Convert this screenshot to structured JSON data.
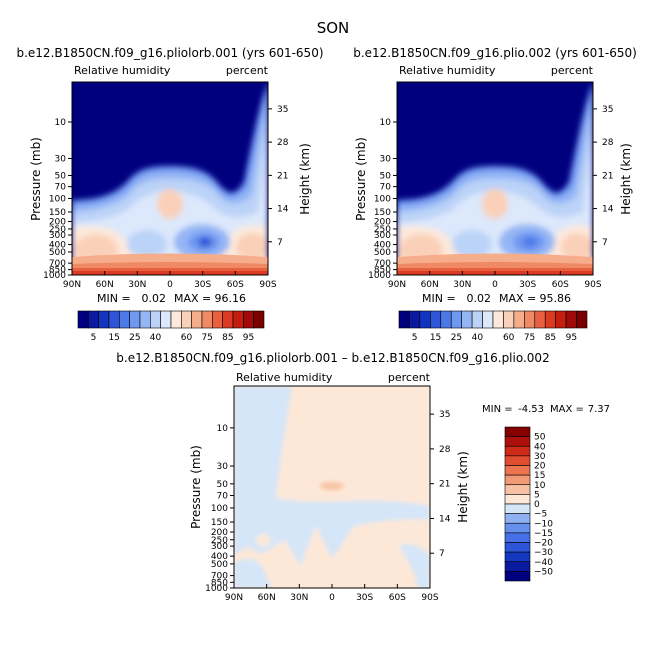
{
  "page_title": "SON",
  "colors": {
    "lb_top": [
      "#00007f",
      "#0a1aa0",
      "#1235c0",
      "#2f55d8",
      "#4c79e8",
      "#6f98f0",
      "#95b6f5",
      "#bcd3f8",
      "#dce8fb",
      "#fde9dc",
      "#fad0b8",
      "#f6ad8b",
      "#f08a64",
      "#e96040",
      "#dc3a22",
      "#c41e0e",
      "#a10a0a",
      "#7a0000"
    ],
    "lb_diff": [
      "#00007f",
      "#0a1aa0",
      "#1238c0",
      "#2c55d8",
      "#4570e6",
      "#6590ee",
      "#8fb0f3",
      "#d5e6f8",
      "#fde8d8",
      "#f7c2a3",
      "#f29a76",
      "#ec744e",
      "#e14d2f",
      "#cd2b17",
      "#ad100a",
      "#870000"
    ],
    "outside": "#00007f"
  },
  "chart_data": [
    {
      "type": "heatmap",
      "title": "b.e12.B1850CN.f09_g16.pliolorb.001 (yrs 601-650)",
      "left_label": "Relative humidity",
      "right_label": "percent",
      "ylabel": "Pressure (mb)",
      "ylabel_right": "Height (km)",
      "xticks": [
        "90N",
        "60N",
        "30N",
        "0",
        "30S",
        "60S",
        "90S"
      ],
      "pressure_ticks": [
        "10",
        "30",
        "50",
        "70",
        "100",
        "150",
        "200",
        "250",
        "300",
        "400",
        "500",
        "700",
        "850",
        "1000"
      ],
      "height_ticks": [
        "35",
        "28",
        "21",
        "14",
        "7"
      ],
      "min_label": "MIN =",
      "min_value": "0.02",
      "max_label": "MAX =",
      "max_value": "96.16",
      "colorbar_labels": [
        "5",
        "15",
        "25",
        "40",
        "60",
        "75",
        "85",
        "95"
      ]
    },
    {
      "type": "heatmap",
      "title": "b.e12.B1850CN.f09_g16.plio.002 (yrs 601-650)",
      "left_label": "Relative humidity",
      "right_label": "percent",
      "ylabel": "Pressure (mb)",
      "ylabel_right": "Height (km)",
      "xticks": [
        "90N",
        "60N",
        "30N",
        "0",
        "30S",
        "60S",
        "90S"
      ],
      "pressure_ticks": [
        "10",
        "30",
        "50",
        "70",
        "100",
        "150",
        "200",
        "250",
        "300",
        "400",
        "500",
        "700",
        "850",
        "1000"
      ],
      "height_ticks": [
        "35",
        "28",
        "21",
        "14",
        "7"
      ],
      "min_label": "MIN =",
      "min_value": "0.02",
      "max_label": "MAX =",
      "max_value": "95.86",
      "colorbar_labels": [
        "5",
        "15",
        "25",
        "40",
        "60",
        "75",
        "85",
        "95"
      ]
    },
    {
      "type": "heatmap",
      "title": "b.e12.B1850CN.f09_g16.pliolorb.001 – b.e12.B1850CN.f09_g16.plio.002",
      "left_label": "Relative humidity",
      "right_label": "percent",
      "ylabel": "Pressure (mb)",
      "ylabel_right": "Height (km)",
      "xticks": [
        "90N",
        "60N",
        "30N",
        "0",
        "30S",
        "60S",
        "90S"
      ],
      "pressure_ticks": [
        "10",
        "30",
        "50",
        "70",
        "100",
        "150",
        "200",
        "250",
        "300",
        "400",
        "500",
        "700",
        "850",
        "1000"
      ],
      "height_ticks": [
        "35",
        "28",
        "21",
        "14",
        "7"
      ],
      "min_label": "MIN =",
      "min_value": "-4.53",
      "max_label": "MAX =",
      "max_value": "7.37",
      "colorbar_labels": [
        "50",
        "40",
        "30",
        "20",
        "15",
        "10",
        "5",
        "0",
        "−5",
        "−10",
        "−15",
        "−20",
        "−30",
        "−40",
        "−50"
      ]
    }
  ]
}
